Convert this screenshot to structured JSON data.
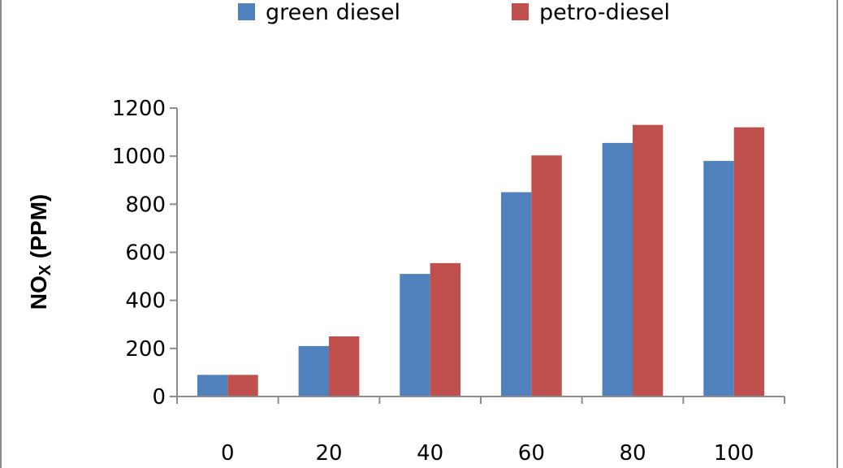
{
  "chart_data": {
    "type": "bar",
    "categories": [
      "0",
      "20",
      "40",
      "60",
      "80",
      "100"
    ],
    "series": [
      {
        "name": "green diesel",
        "color": "#4f81bd",
        "values": [
          90,
          210,
          510,
          850,
          1055,
          980
        ]
      },
      {
        "name": "petro-diesel",
        "color": "#c0504d",
        "values": [
          90,
          250,
          555,
          1003,
          1130,
          1120
        ]
      }
    ],
    "title": "",
    "xlabel": "",
    "ylabel": "NO",
    "ylabel_subscript": "X",
    "ylabel_suffix": " (PPM)",
    "ylim": [
      0,
      1200
    ],
    "yticks": [
      0,
      200,
      400,
      600,
      800,
      1000,
      1200
    ],
    "grid": false,
    "legend_position": "top"
  }
}
